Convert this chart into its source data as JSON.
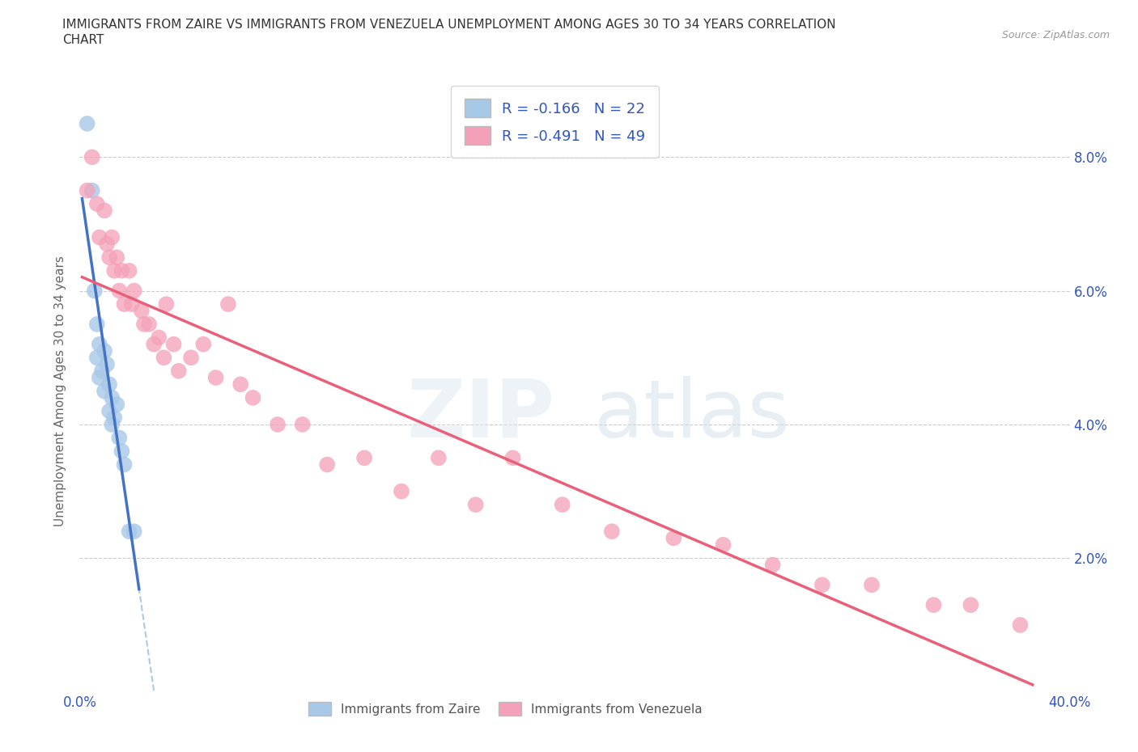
{
  "title_line1": "IMMIGRANTS FROM ZAIRE VS IMMIGRANTS FROM VENEZUELA UNEMPLOYMENT AMONG AGES 30 TO 34 YEARS CORRELATION",
  "title_line2": "CHART",
  "source": "Source: ZipAtlas.com",
  "ylabel": "Unemployment Among Ages 30 to 34 years",
  "zaire_label": "Immigrants from Zaire",
  "venezuela_label": "Immigrants from Venezuela",
  "zaire_R": -0.166,
  "zaire_N": 22,
  "venezuela_R": -0.491,
  "venezuela_N": 49,
  "zaire_color": "#a8c8e8",
  "venezuela_color": "#f4a0b8",
  "zaire_line_color": "#4472c4",
  "venezuela_line_color": "#e8607a",
  "dashed_line_color": "#b0c8e0",
  "xlim": [
    0,
    0.4
  ],
  "ylim": [
    0.0,
    0.09
  ],
  "yticks": [
    0.02,
    0.04,
    0.06,
    0.08
  ],
  "ytick_labels": [
    "2.0%",
    "4.0%",
    "6.0%",
    "8.0%"
  ],
  "xticks": [
    0.0,
    0.05,
    0.1,
    0.15,
    0.2,
    0.25,
    0.3,
    0.35,
    0.4
  ],
  "zaire_x": [
    0.003,
    0.005,
    0.006,
    0.007,
    0.007,
    0.008,
    0.008,
    0.009,
    0.01,
    0.01,
    0.011,
    0.012,
    0.012,
    0.013,
    0.013,
    0.014,
    0.015,
    0.016,
    0.017,
    0.018,
    0.02,
    0.022
  ],
  "zaire_y": [
    0.085,
    0.075,
    0.06,
    0.055,
    0.05,
    0.052,
    0.047,
    0.048,
    0.051,
    0.045,
    0.049,
    0.046,
    0.042,
    0.044,
    0.04,
    0.041,
    0.043,
    0.038,
    0.036,
    0.034,
    0.024,
    0.024
  ],
  "venezuela_x": [
    0.003,
    0.005,
    0.007,
    0.008,
    0.01,
    0.011,
    0.012,
    0.013,
    0.014,
    0.015,
    0.016,
    0.017,
    0.018,
    0.02,
    0.021,
    0.022,
    0.025,
    0.026,
    0.028,
    0.03,
    0.032,
    0.034,
    0.035,
    0.038,
    0.04,
    0.045,
    0.05,
    0.055,
    0.06,
    0.065,
    0.07,
    0.08,
    0.09,
    0.1,
    0.115,
    0.13,
    0.145,
    0.16,
    0.175,
    0.195,
    0.215,
    0.24,
    0.26,
    0.28,
    0.3,
    0.32,
    0.345,
    0.36,
    0.38
  ],
  "venezuela_y": [
    0.075,
    0.08,
    0.073,
    0.068,
    0.072,
    0.067,
    0.065,
    0.068,
    0.063,
    0.065,
    0.06,
    0.063,
    0.058,
    0.063,
    0.058,
    0.06,
    0.057,
    0.055,
    0.055,
    0.052,
    0.053,
    0.05,
    0.058,
    0.052,
    0.048,
    0.05,
    0.052,
    0.047,
    0.058,
    0.046,
    0.044,
    0.04,
    0.04,
    0.034,
    0.035,
    0.03,
    0.035,
    0.028,
    0.035,
    0.028,
    0.024,
    0.023,
    0.022,
    0.019,
    0.016,
    0.016,
    0.013,
    0.013,
    0.01
  ],
  "zaire_trend_x": [
    0.001,
    0.024
  ],
  "venezuela_trend_x": [
    0.001,
    0.385
  ],
  "dashed_trend_x": [
    0.001,
    0.4
  ]
}
